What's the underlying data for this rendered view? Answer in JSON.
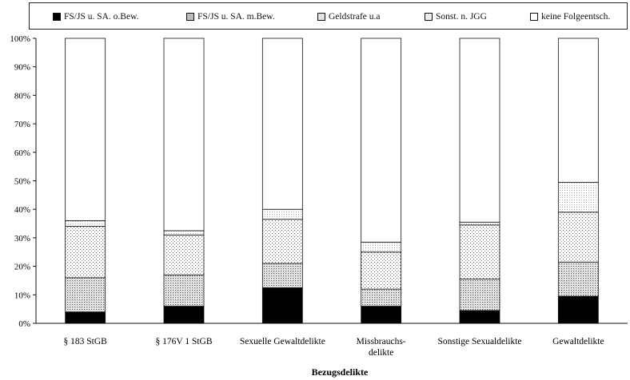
{
  "chart_data": {
    "type": "bar",
    "stacked": true,
    "percent": true,
    "title": "",
    "xlabel": "Bezugsdelikte",
    "ylabel": "",
    "ylim": [
      0,
      100
    ],
    "yticks": [
      "0%",
      "10%",
      "20%",
      "30%",
      "40%",
      "50%",
      "60%",
      "70%",
      "80%",
      "90%",
      "100%"
    ],
    "grid": false,
    "legend_position": "top",
    "categories": [
      [
        "§ 183 StGB"
      ],
      [
        "§ 176V 1 StGB"
      ],
      [
        "Sexuelle Gewaltdelikte"
      ],
      [
        "Missbrauchs-",
        "delikte"
      ],
      [
        "Sonstige Sexualdelikte"
      ],
      [
        "Gewaltdelikte"
      ]
    ],
    "series": [
      {
        "name": "FS/JS u. SA. o.Bew.",
        "pattern": "solid-black",
        "values": [
          4,
          6,
          12.5,
          6,
          4.5,
          9.5
        ]
      },
      {
        "name": "FS/JS u. SA. m.Bew.",
        "pattern": "dense-dots",
        "values": [
          12,
          11,
          8.5,
          6,
          11,
          12
        ]
      },
      {
        "name": "Geldstrafe u.a",
        "pattern": "sparse-dots",
        "values": [
          18,
          14,
          15.5,
          13,
          19,
          17.5
        ]
      },
      {
        "name": "Sonst. n. JGG",
        "pattern": "fine-dots",
        "values": [
          2,
          1.5,
          3.5,
          3.5,
          1,
          10.5
        ]
      },
      {
        "name": "keine Folgeentsch.",
        "pattern": "white",
        "values": [
          64,
          67.5,
          60,
          71.5,
          64.5,
          50.5
        ]
      }
    ]
  }
}
